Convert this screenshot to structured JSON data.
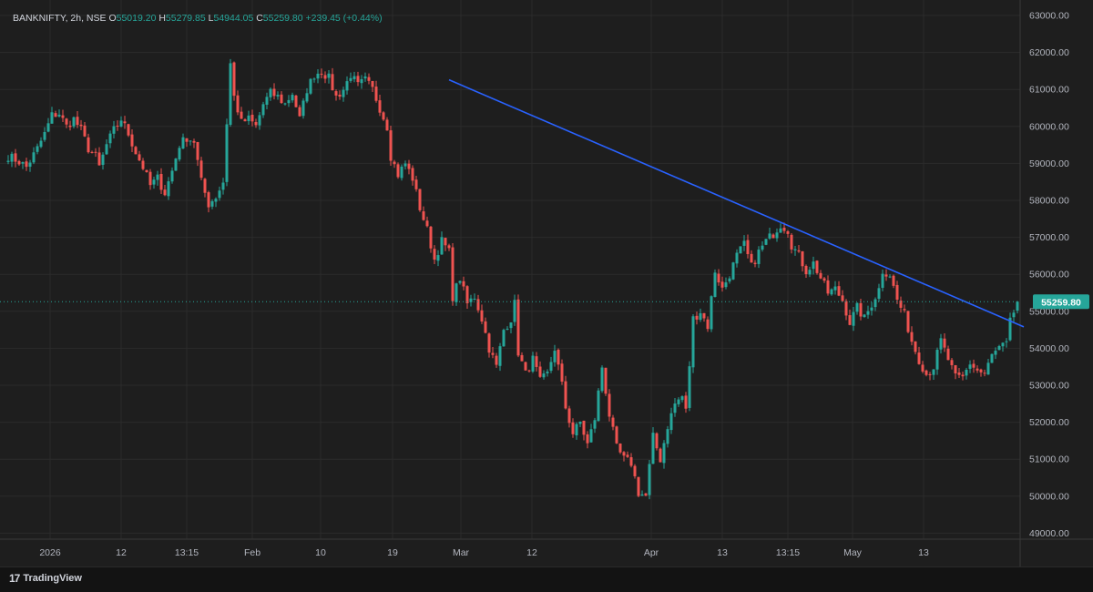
{
  "legend": {
    "symbol": "BANKNIFTY, 2h, NSE",
    "o_label": "O",
    "open": "55019.20",
    "h_label": "H",
    "high": "55279.85",
    "l_label": "L",
    "low": "54944.05",
    "c_label": "C",
    "close": "55259.80",
    "change": "+239.45 (+0.44%)"
  },
  "footer": {
    "logo": "17",
    "brand": "TradingView"
  },
  "colors": {
    "up": "#26a69a",
    "down": "#ef5350",
    "trendline": "#2962ff",
    "background": "#1e1e1e",
    "text": "#d1d4dc"
  },
  "chart_data": {
    "type": "candlestick",
    "ylim": [
      48500,
      63200
    ],
    "y_ticks": [
      "49000.00",
      "50000.00",
      "51000.00",
      "52000.00",
      "53000.00",
      "54000.00",
      "55000.00",
      "56000.00",
      "57000.00",
      "58000.00",
      "59000.00",
      "60000.00",
      "61000.00",
      "62000.00",
      "63000.00"
    ],
    "x_ticks": [
      "2026",
      "12",
      "13:15",
      "Feb",
      "10",
      "19",
      "Mar",
      "12",
      "Apr",
      "13",
      "13:15",
      "May",
      "13"
    ],
    "last_price_label": "55259.80",
    "trendline": {
      "from": 61260,
      "to": 54580
    },
    "path": [
      [
        0,
        59200
      ],
      [
        3,
        59050
      ],
      [
        5,
        58900
      ],
      [
        8,
        59400
      ],
      [
        10,
        59800
      ],
      [
        12,
        60300
      ],
      [
        14,
        60350
      ],
      [
        16,
        60000
      ],
      [
        18,
        60200
      ],
      [
        20,
        59900
      ],
      [
        22,
        59400
      ],
      [
        24,
        59200
      ],
      [
        25,
        58900
      ],
      [
        27,
        59500
      ],
      [
        29,
        59900
      ],
      [
        31,
        60200
      ],
      [
        33,
        59800
      ],
      [
        35,
        59300
      ],
      [
        37,
        58900
      ],
      [
        39,
        58400
      ],
      [
        41,
        58600
      ],
      [
        43,
        58200
      ],
      [
        45,
        58800
      ],
      [
        47,
        59500
      ],
      [
        49,
        59700
      ],
      [
        51,
        59600
      ],
      [
        53,
        58500
      ],
      [
        55,
        57900
      ],
      [
        57,
        58100
      ],
      [
        59,
        58500
      ],
      [
        61,
        61700
      ],
      [
        62,
        60800
      ],
      [
        64,
        60100
      ],
      [
        66,
        60200
      ],
      [
        68,
        60000
      ],
      [
        70,
        60600
      ],
      [
        72,
        60900
      ],
      [
        74,
        60800
      ],
      [
        76,
        60600
      ],
      [
        78,
        60900
      ],
      [
        80,
        60200
      ],
      [
        82,
        61000
      ],
      [
        84,
        61400
      ],
      [
        86,
        61500
      ],
      [
        88,
        61300
      ],
      [
        90,
        60800
      ],
      [
        92,
        61000
      ],
      [
        94,
        61400
      ],
      [
        96,
        61100
      ],
      [
        98,
        61250
      ],
      [
        100,
        61000
      ],
      [
        102,
        60500
      ],
      [
        104,
        60000
      ],
      [
        105,
        59200
      ],
      [
        107,
        58700
      ],
      [
        109,
        59000
      ],
      [
        111,
        58600
      ],
      [
        113,
        57800
      ],
      [
        115,
        57200
      ],
      [
        117,
        56400
      ],
      [
        119,
        56900
      ],
      [
        121,
        56600
      ],
      [
        122,
        55400
      ],
      [
        124,
        55900
      ],
      [
        126,
        55200
      ],
      [
        128,
        55400
      ],
      [
        130,
        54800
      ],
      [
        132,
        54000
      ],
      [
        134,
        53500
      ],
      [
        136,
        54500
      ],
      [
        138,
        54800
      ],
      [
        139,
        55200
      ],
      [
        140,
        53900
      ],
      [
        142,
        53300
      ],
      [
        144,
        53700
      ],
      [
        146,
        53100
      ],
      [
        148,
        53300
      ],
      [
        150,
        54000
      ],
      [
        152,
        53000
      ],
      [
        153,
        52400
      ],
      [
        155,
        51700
      ],
      [
        157,
        52000
      ],
      [
        159,
        51400
      ],
      [
        161,
        52100
      ],
      [
        163,
        53500
      ],
      [
        165,
        52200
      ],
      [
        167,
        51300
      ],
      [
        169,
        51000
      ],
      [
        171,
        50900
      ],
      [
        173,
        50100
      ],
      [
        175,
        50000
      ],
      [
        177,
        51600
      ],
      [
        179,
        51000
      ],
      [
        181,
        51900
      ],
      [
        183,
        52500
      ],
      [
        185,
        52700
      ],
      [
        186,
        52300
      ],
      [
        188,
        54800
      ],
      [
        190,
        55000
      ],
      [
        192,
        54600
      ],
      [
        194,
        56100
      ],
      [
        196,
        55600
      ],
      [
        198,
        56000
      ],
      [
        200,
        56500
      ],
      [
        202,
        56800
      ],
      [
        204,
        56200
      ],
      [
        206,
        56600
      ],
      [
        208,
        56900
      ],
      [
        210,
        57100
      ],
      [
        212,
        57350
      ],
      [
        214,
        57200
      ],
      [
        215,
        56800
      ],
      [
        217,
        56500
      ],
      [
        219,
        56100
      ],
      [
        221,
        56300
      ],
      [
        223,
        55900
      ],
      [
        225,
        55500
      ],
      [
        227,
        55600
      ],
      [
        229,
        55300
      ],
      [
        231,
        54700
      ],
      [
        233,
        55100
      ],
      [
        235,
        54800
      ],
      [
        237,
        55200
      ],
      [
        239,
        55600
      ],
      [
        240,
        56100
      ],
      [
        242,
        56000
      ],
      [
        244,
        55300
      ],
      [
        246,
        54900
      ],
      [
        248,
        54200
      ],
      [
        250,
        53700
      ],
      [
        252,
        53300
      ],
      [
        254,
        53500
      ],
      [
        256,
        54200
      ],
      [
        258,
        53700
      ],
      [
        260,
        53200
      ],
      [
        262,
        53200
      ],
      [
        264,
        53600
      ],
      [
        266,
        53400
      ],
      [
        268,
        53300
      ],
      [
        270,
        53800
      ],
      [
        272,
        54000
      ],
      [
        274,
        54100
      ],
      [
        275,
        54700
      ],
      [
        277,
        55260
      ]
    ]
  }
}
